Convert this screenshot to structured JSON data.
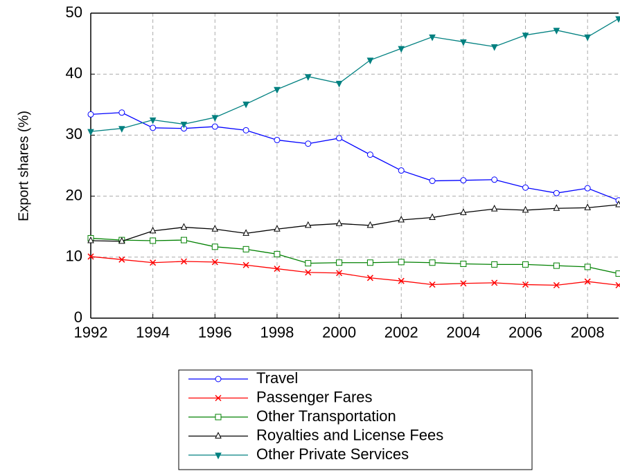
{
  "chart_data": {
    "type": "line",
    "y_label": "Export shares (%)",
    "x": [
      1992,
      1993,
      1994,
      1995,
      1996,
      1997,
      1998,
      1999,
      2000,
      2001,
      2002,
      2003,
      2004,
      2005,
      2006,
      2007,
      2008,
      2009
    ],
    "series": [
      {
        "name": "Travel",
        "color": "#0000ff",
        "marker": "circle",
        "values": [
          33.4,
          33.7,
          31.2,
          31.1,
          31.4,
          30.8,
          29.2,
          28.6,
          29.5,
          26.8,
          24.2,
          22.5,
          22.6,
          22.7,
          21.4,
          20.5,
          21.3,
          19.3
        ]
      },
      {
        "name": "Passenger Fares",
        "color": "#ff0000",
        "marker": "x",
        "values": [
          10.1,
          9.6,
          9.1,
          9.3,
          9.2,
          8.7,
          8.1,
          7.5,
          7.4,
          6.6,
          6.1,
          5.5,
          5.7,
          5.8,
          5.5,
          5.4,
          6.0,
          5.4
        ]
      },
      {
        "name": "Other Transportation",
        "color": "#008000",
        "marker": "square",
        "values": [
          13.1,
          12.8,
          12.7,
          12.8,
          11.7,
          11.3,
          10.5,
          9.0,
          9.1,
          9.1,
          9.2,
          9.1,
          8.9,
          8.8,
          8.8,
          8.6,
          8.4,
          7.3
        ]
      },
      {
        "name": "Royalties and License Fees",
        "color": "#000000",
        "marker": "triangle-up",
        "values": [
          12.7,
          12.6,
          14.3,
          14.9,
          14.6,
          13.9,
          14.6,
          15.2,
          15.5,
          15.2,
          16.1,
          16.5,
          17.3,
          17.9,
          17.7,
          18.0,
          18.1,
          18.6
        ]
      },
      {
        "name": "Other Private Services",
        "color": "#008080",
        "marker": "triangle-down",
        "values": [
          30.6,
          31.1,
          32.5,
          31.8,
          32.9,
          35.1,
          37.5,
          39.6,
          38.5,
          42.3,
          44.2,
          46.1,
          45.3,
          44.5,
          46.4,
          47.2,
          46.1,
          49.1
        ]
      }
    ],
    "xlim": [
      1992,
      2009
    ],
    "xticks": [
      1992,
      1994,
      1996,
      1998,
      2000,
      2002,
      2004,
      2006,
      2008
    ],
    "ylim": [
      0,
      50
    ],
    "yticks": [
      0,
      10,
      20,
      30,
      40,
      50
    ],
    "grid": true,
    "legend": "bottom"
  }
}
